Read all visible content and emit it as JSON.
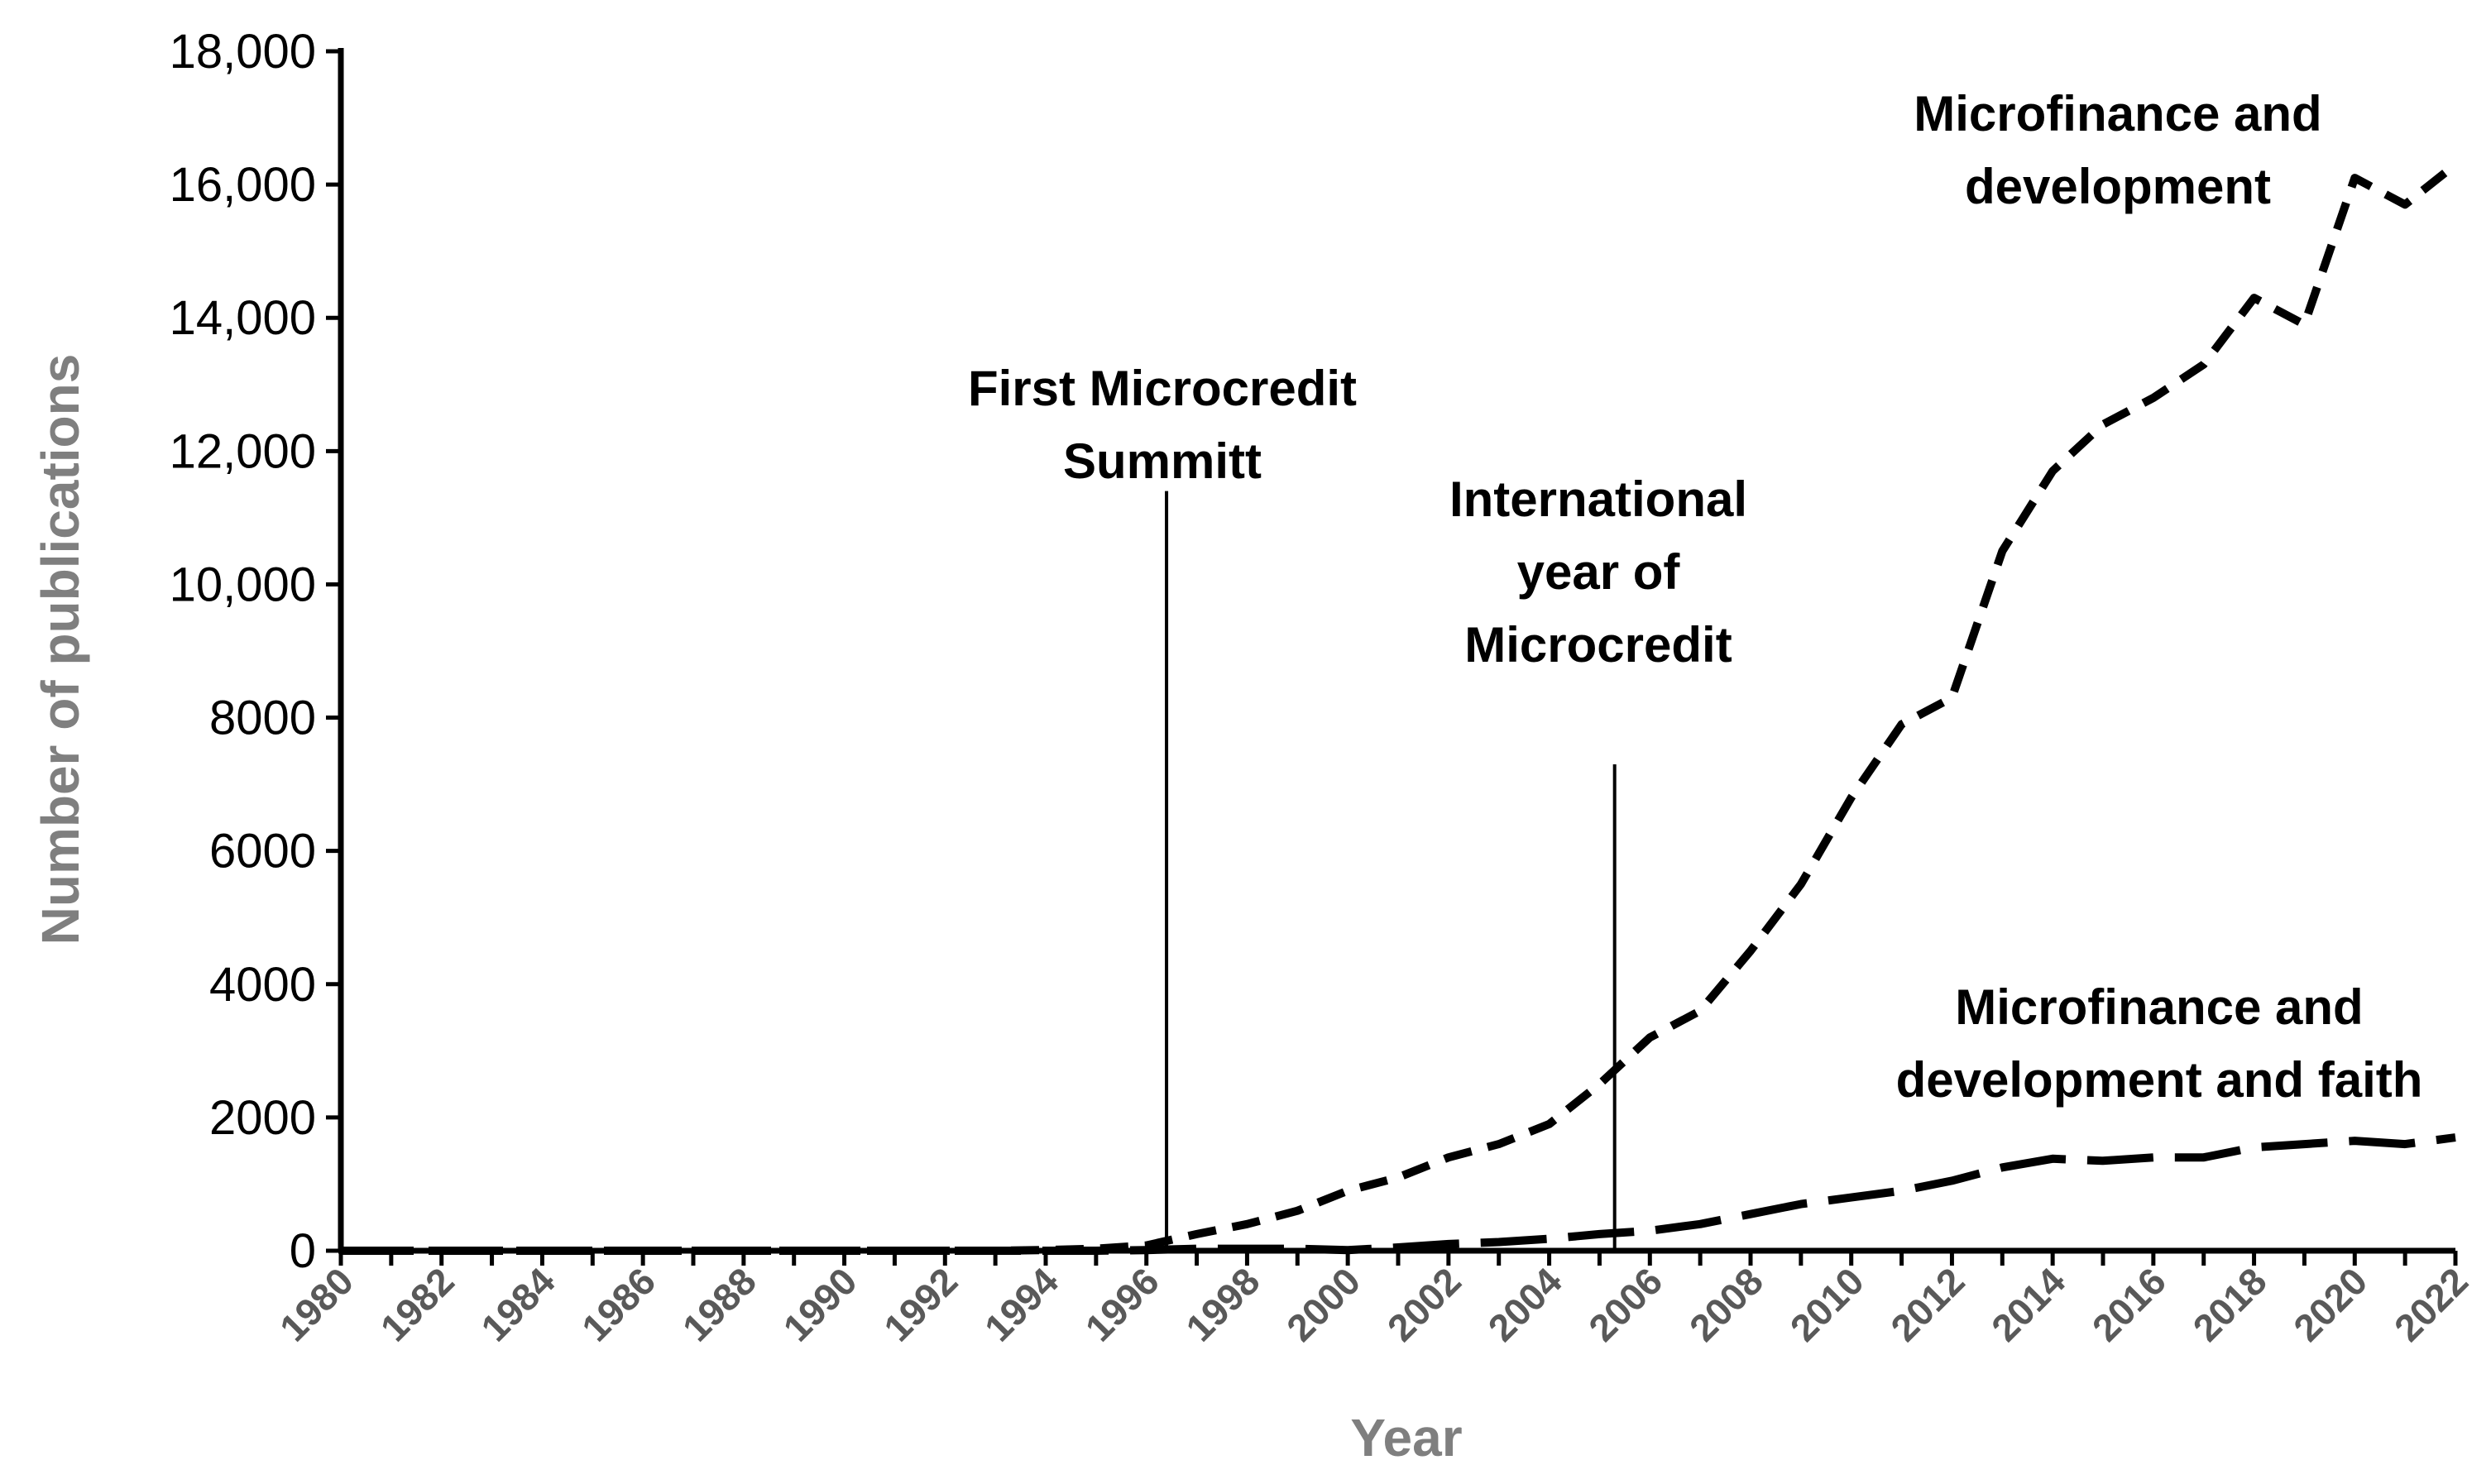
{
  "chart_data": {
    "type": "line",
    "title": "",
    "xlabel": "Year",
    "ylabel": "Number of publications",
    "x": [
      1980,
      1981,
      1982,
      1983,
      1984,
      1985,
      1986,
      1987,
      1988,
      1989,
      1990,
      1991,
      1992,
      1993,
      1994,
      1995,
      1996,
      1997,
      1998,
      1999,
      2000,
      2001,
      2002,
      2003,
      2004,
      2005,
      2006,
      2007,
      2008,
      2009,
      2010,
      2011,
      2012,
      2013,
      2014,
      2015,
      2016,
      2017,
      2018,
      2019,
      2020,
      2021,
      2022
    ],
    "x_tick_labels": [
      "1980",
      "1982",
      "1984",
      "1986",
      "1988",
      "1990",
      "1992",
      "1994",
      "1996",
      "1998",
      "2000",
      "2002",
      "2004",
      "2006",
      "2008",
      "2010",
      "2012",
      "2014",
      "2016",
      "2018",
      "2020",
      "2022"
    ],
    "ylim": [
      0,
      18000
    ],
    "y_ticks": [
      0,
      2000,
      4000,
      6000,
      8000,
      10000,
      12000,
      14000,
      16000,
      18000
    ],
    "y_tick_labels": [
      "0",
      "2000",
      "4000",
      "6000",
      "8000",
      "10,000",
      "12,000",
      "14,000",
      "16,000",
      "18,000"
    ],
    "grid": false,
    "series": [
      {
        "name": "Microfinance and development",
        "label_lines": [
          "Microfinance and",
          "development"
        ],
        "style": "short-dash",
        "values": [
          0,
          0,
          0,
          0,
          0,
          0,
          0,
          0,
          0,
          0,
          0,
          0,
          0,
          0,
          10,
          30,
          80,
          250,
          400,
          600,
          900,
          1100,
          1400,
          1600,
          1900,
          2500,
          3200,
          3600,
          4500,
          5500,
          6800,
          7900,
          8300,
          10500,
          11700,
          12400,
          12800,
          13300,
          14300,
          13900,
          16100,
          15700,
          16300
        ]
      },
      {
        "name": "Microfinance and development and faith",
        "label_lines": [
          "Microfinance and",
          "development and faith"
        ],
        "style": "long-dash",
        "values": [
          0,
          0,
          0,
          0,
          0,
          0,
          0,
          0,
          0,
          0,
          0,
          0,
          0,
          0,
          0,
          0,
          10,
          30,
          30,
          30,
          10,
          50,
          100,
          130,
          180,
          250,
          300,
          400,
          550,
          700,
          800,
          900,
          1050,
          1250,
          1380,
          1350,
          1400,
          1400,
          1550,
          1600,
          1650,
          1600,
          1700
        ]
      }
    ],
    "annotations": [
      {
        "lines": [
          "First Microcredit",
          "Summitt"
        ],
        "year": 1996.4,
        "line_top": 11400
      },
      {
        "lines": [
          "International",
          "year of",
          "Microcredit"
        ],
        "year": 2005.3,
        "line_top": 7300
      }
    ],
    "colors": {
      "axis": "#000000",
      "series": "#000000",
      "axis_title": "#7f7f7f",
      "x_tick": "#595959"
    }
  }
}
